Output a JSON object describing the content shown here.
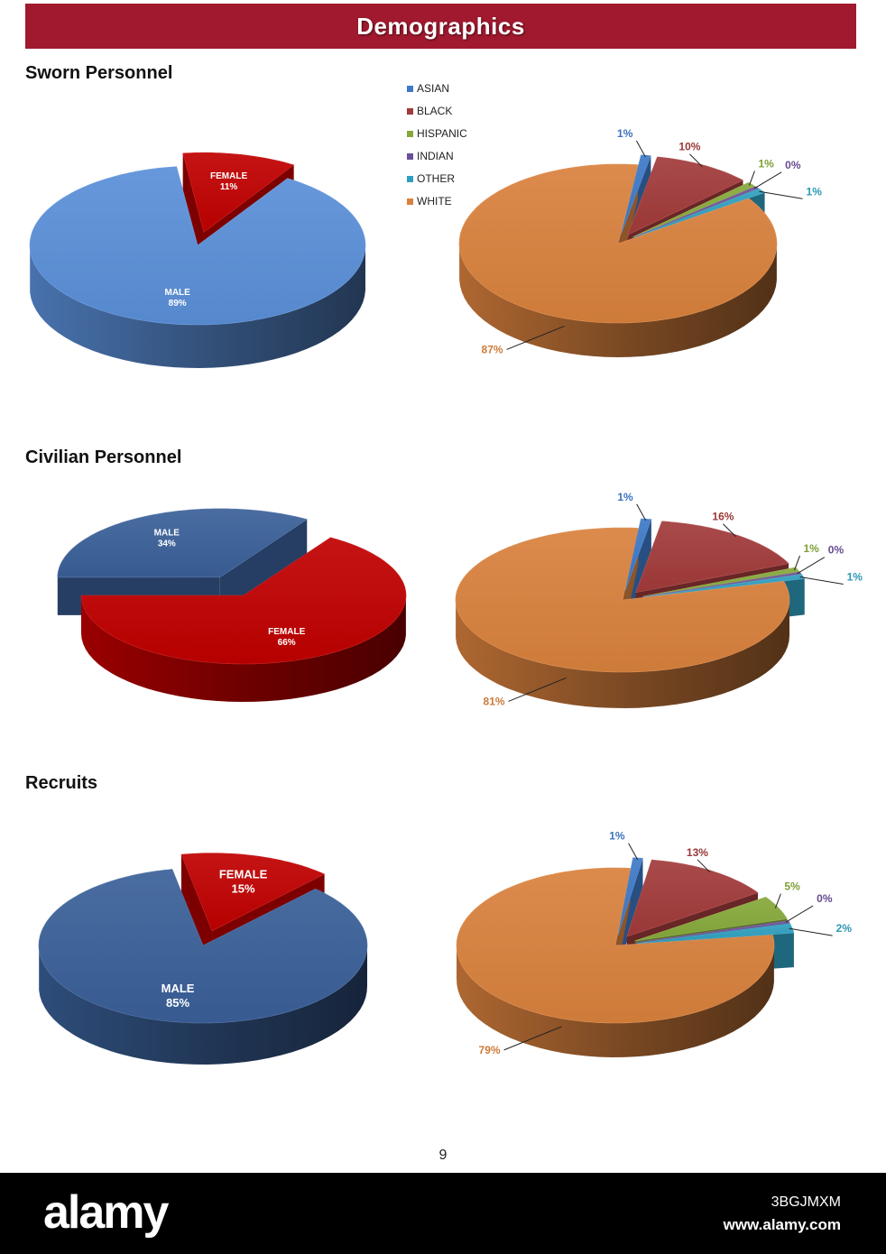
{
  "header": {
    "title": "Demographics"
  },
  "sections": [
    {
      "title": "Sworn Personnel"
    },
    {
      "title": "Civilian Personnel"
    },
    {
      "title": "Recruits"
    }
  ],
  "page_number": "9",
  "footer": {
    "logo": "alamy",
    "image_id": "3BGJMXM",
    "url": "www.alamy.com"
  },
  "colors": {
    "banner": "#a0192f",
    "male_sworn": "#5a8fd8",
    "male_dark": "#3a6099",
    "female": "#c00000",
    "asian": "#3d79c7",
    "black": "#a23a3a",
    "hispanic": "#86a83a",
    "indian": "#6b4f96",
    "other": "#2f9fbf",
    "white": "#d9813d"
  },
  "chart_data": [
    {
      "type": "pie",
      "section": "Sworn Personnel",
      "categories": [
        "FEMALE",
        "MALE"
      ],
      "values": [
        11,
        89
      ],
      "labels": [
        {
          "name": "FEMALE",
          "value": "11%"
        },
        {
          "name": "MALE",
          "value": "89%"
        }
      ]
    },
    {
      "type": "pie",
      "section": "Sworn Personnel",
      "legend": [
        "ASIAN",
        "BLACK",
        "HISPANIC",
        "INDIAN",
        "OTHER",
        "WHITE"
      ],
      "categories": [
        "ASIAN",
        "BLACK",
        "HISPANIC",
        "INDIAN",
        "OTHER",
        "WHITE"
      ],
      "values": [
        1,
        10,
        1,
        0,
        1,
        87
      ],
      "labels": [
        "1%",
        "10%",
        "1%",
        "0%",
        "1%",
        "87%"
      ]
    },
    {
      "type": "pie",
      "section": "Civilian Personnel",
      "categories": [
        "MALE",
        "FEMALE"
      ],
      "values": [
        34,
        66
      ],
      "labels": [
        {
          "name": "MALE",
          "value": "34%"
        },
        {
          "name": "FEMALE",
          "value": "66%"
        }
      ]
    },
    {
      "type": "pie",
      "section": "Civilian Personnel",
      "categories": [
        "ASIAN",
        "BLACK",
        "HISPANIC",
        "INDIAN",
        "OTHER",
        "WHITE"
      ],
      "values": [
        1,
        16,
        1,
        0,
        1,
        81
      ],
      "labels": [
        "1%",
        "16%",
        "1%",
        "0%",
        "1%",
        "81%"
      ]
    },
    {
      "type": "pie",
      "section": "Recruits",
      "categories": [
        "FEMALE",
        "MALE"
      ],
      "values": [
        15,
        85
      ],
      "labels": [
        {
          "name": "FEMALE",
          "value": "15%"
        },
        {
          "name": "MALE",
          "value": "85%"
        }
      ]
    },
    {
      "type": "pie",
      "section": "Recruits",
      "categories": [
        "ASIAN",
        "BLACK",
        "HISPANIC",
        "INDIAN",
        "OTHER",
        "WHITE"
      ],
      "values": [
        1,
        13,
        5,
        0,
        2,
        79
      ],
      "labels": [
        "1%",
        "13%",
        "5%",
        "0%",
        "2%",
        "79%"
      ]
    }
  ]
}
